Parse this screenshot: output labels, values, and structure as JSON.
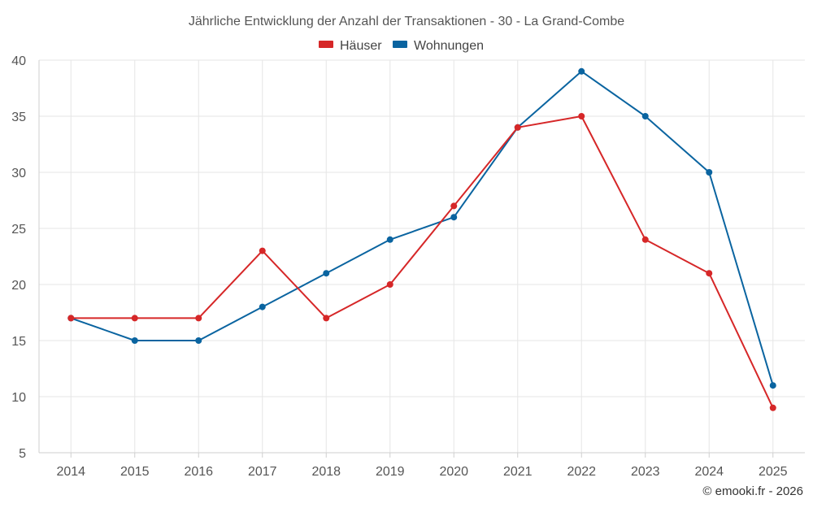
{
  "chart_data": {
    "type": "line",
    "title": "Jährliche Entwicklung der Anzahl der Transaktionen - 30 - La Grand-Combe",
    "categories": [
      "2014",
      "2015",
      "2016",
      "2017",
      "2018",
      "2019",
      "2020",
      "2021",
      "2022",
      "2023",
      "2024",
      "2025"
    ],
    "series": [
      {
        "name": "Häuser",
        "color": "#d62728",
        "values": [
          17,
          17,
          17,
          23,
          17,
          20,
          27,
          34,
          35,
          24,
          21,
          9
        ]
      },
      {
        "name": "Wohnungen",
        "color": "#0a64a0",
        "values": [
          17,
          15,
          15,
          18,
          21,
          24,
          26,
          34,
          39,
          35,
          30,
          11
        ]
      }
    ],
    "yticks": [
      5,
      10,
      15,
      20,
      25,
      30,
      35,
      40
    ],
    "ylim": [
      5,
      40
    ],
    "xlabel": "",
    "ylabel": "",
    "grid": true,
    "legend": "top-center"
  },
  "credit": "© emooki.fr - 2026"
}
